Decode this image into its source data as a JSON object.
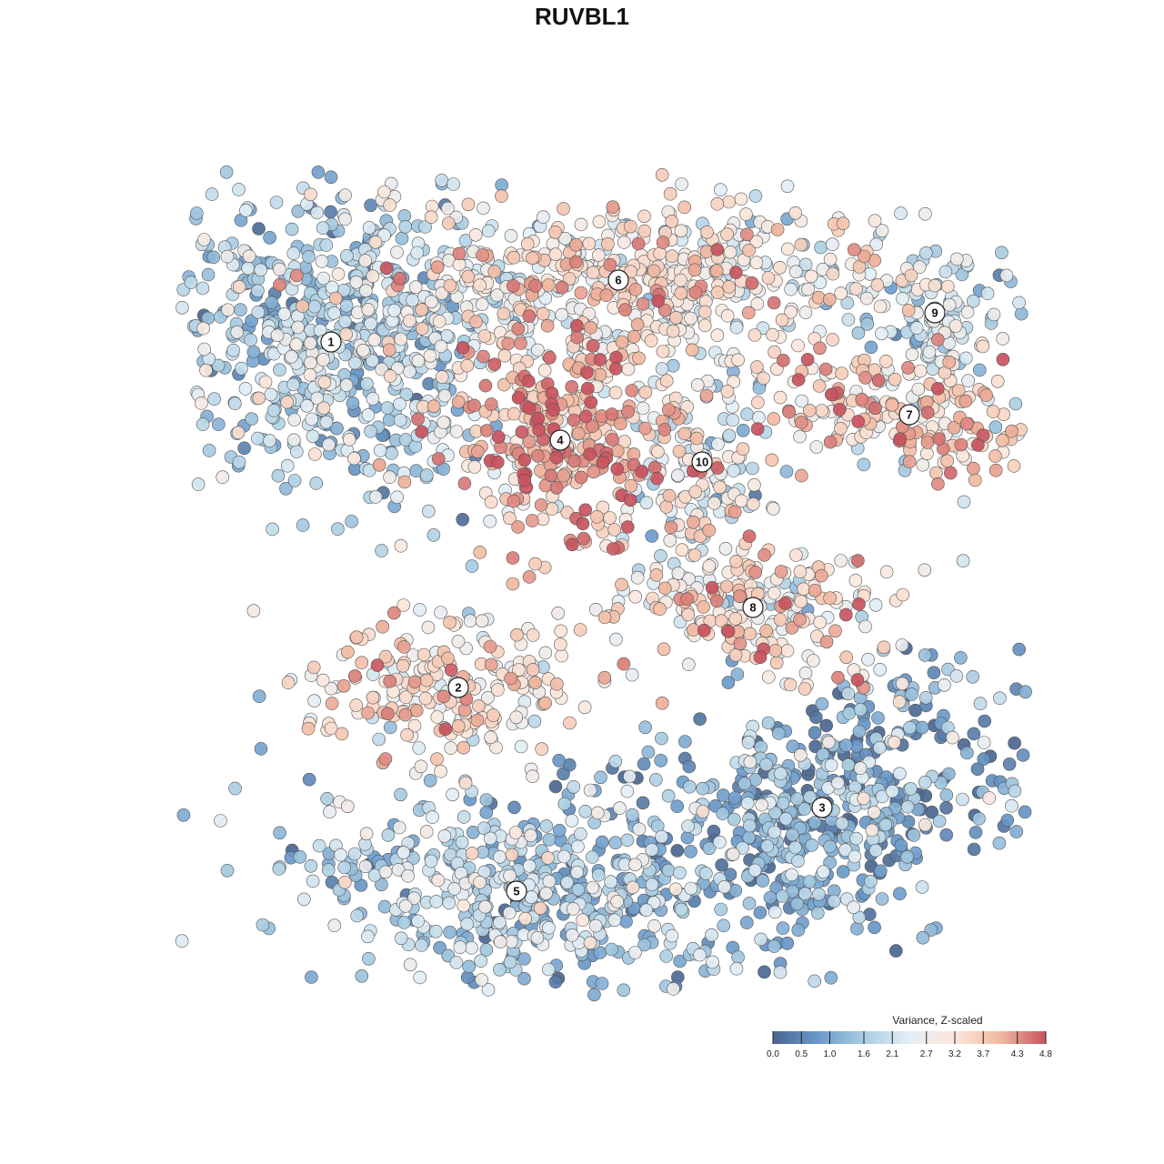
{
  "chart_data": {
    "type": "scatter",
    "title": "RUVBL1",
    "colorbar": {
      "title": "Variance, Z-scaled",
      "range": [
        0.0,
        4.8
      ],
      "ticks": [
        0.0,
        0.5,
        1.0,
        1.6,
        2.1,
        2.7,
        3.2,
        3.7,
        4.3,
        4.8
      ],
      "tick_labels": [
        "0.0",
        "0.5",
        "1.0",
        "1.6",
        "2.1",
        "2.7",
        "3.2",
        "3.7",
        "4.3",
        "4.8"
      ],
      "colors": [
        "#4a6690",
        "#6a9acb",
        "#a9cde2",
        "#e3eef5",
        "#fbe7dc",
        "#f2b9a0",
        "#c8525e"
      ],
      "placement": "bottom-right"
    },
    "axes_visible": false,
    "grid": false,
    "clusters": [
      {
        "label": "1",
        "x": -3.45,
        "y": 3.3,
        "mean_value": 1.7
      },
      {
        "label": "2",
        "x": -1.7,
        "y": -1.45,
        "mean_value": 3.2
      },
      {
        "label": "3",
        "x": 3.3,
        "y": -3.1,
        "mean_value": 1.1
      },
      {
        "label": "4",
        "x": -0.3,
        "y": 1.95,
        "mean_value": 3.9
      },
      {
        "label": "5",
        "x": -0.9,
        "y": -4.25,
        "mean_value": 1.6
      },
      {
        "label": "6",
        "x": 0.5,
        "y": 4.15,
        "mean_value": 3.0
      },
      {
        "label": "7",
        "x": 4.5,
        "y": 2.3,
        "mean_value": 3.6
      },
      {
        "label": "8",
        "x": 2.35,
        "y": -0.35,
        "mean_value": 3.2
      },
      {
        "label": "9",
        "x": 4.85,
        "y": 3.7,
        "mean_value": 2.2
      },
      {
        "label": "10",
        "x": 1.65,
        "y": 1.65,
        "mean_value": 2.4
      }
    ]
  }
}
